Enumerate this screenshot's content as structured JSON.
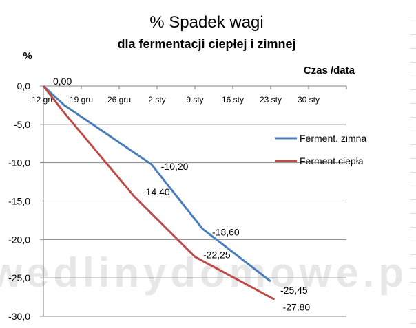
{
  "watermark": "wedlinydomowe.pl",
  "chart_data": {
    "type": "line",
    "title": "% Spadek wagi",
    "subtitle": "dla fermentacji ciepłej i zimnej",
    "ylabel": "%",
    "xlabel": "Czas /data",
    "categories": [
      "12 gru",
      "19 gru",
      "26 gru",
      "2 sty",
      "9 sty",
      "16 sty",
      "23 sty",
      "30 sty"
    ],
    "x_position": "top",
    "ylim": [
      -30,
      0
    ],
    "yticks": [
      "0,0",
      "-5,0",
      "-10,0",
      "-15,0",
      "-20,0",
      "-25,0",
      "-30,0"
    ],
    "grid": true,
    "legend_position": "right",
    "series": [
      {
        "name": "Ferment. zimna",
        "color": "#4a7ebb",
        "x": [
          0,
          0.55,
          2.85,
          4.2,
          6.0
        ],
        "values": [
          0.0,
          -2.5,
          -10.2,
          -18.6,
          -25.45
        ],
        "labels": [
          "0,00",
          "",
          "-10,20",
          "-18,60",
          "-25,45"
        ]
      },
      {
        "name": "Ferment.ciepła",
        "color": "#be4b48",
        "x": [
          0,
          0.55,
          2.4,
          4.0,
          6.1
        ],
        "values": [
          0.0,
          -3.5,
          -14.4,
          -22.25,
          -27.8
        ],
        "labels": [
          "",
          "",
          "-14,40",
          "-22,25",
          "-27,80"
        ]
      }
    ]
  }
}
